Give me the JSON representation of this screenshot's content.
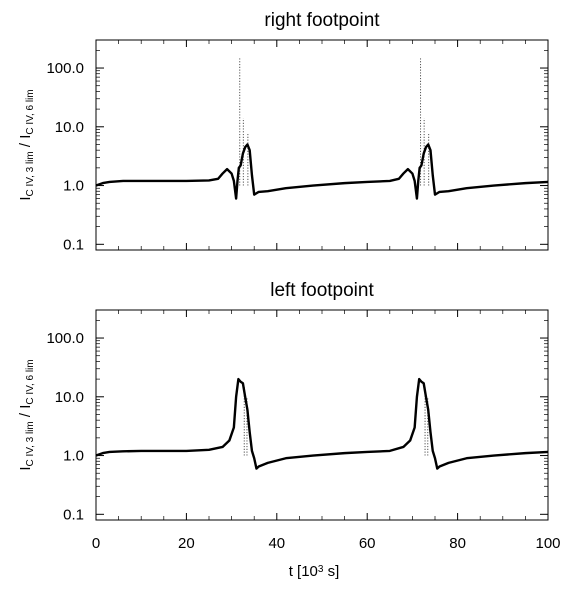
{
  "chart_data": [
    {
      "type": "line",
      "title": "right footpoint",
      "ylabel_main": "I",
      "ylabel_sub_num": "C IV, 3 lim",
      "ylabel_sub_den": "C IV, 6 lim",
      "xlim": [
        0,
        100
      ],
      "ylim": [
        0.08,
        300
      ],
      "yscale": "log",
      "xticks": [
        0,
        20,
        40,
        60,
        80,
        100
      ],
      "yticks": [
        0.1,
        1.0,
        10.0,
        100.0
      ],
      "ytick_labels": [
        "0.1",
        "1.0",
        "10.0",
        "100.0"
      ],
      "series": [
        {
          "x": [
            0,
            1.5,
            3,
            6,
            10,
            15,
            20,
            25,
            27,
            28,
            29,
            30,
            30.5,
            31,
            31.3,
            31.6,
            32,
            32.5,
            33,
            33.5,
            34,
            34.5,
            35,
            36,
            38,
            42,
            48,
            55,
            60,
            65,
            67,
            68,
            69,
            70,
            70.5,
            71,
            71.3,
            71.6,
            72,
            72.5,
            73,
            73.5,
            74,
            74.5,
            75,
            76,
            78,
            82,
            88,
            95,
            100
          ],
          "y": [
            1.0,
            1.1,
            1.15,
            1.2,
            1.2,
            1.2,
            1.2,
            1.22,
            1.3,
            1.6,
            1.9,
            1.6,
            1.2,
            0.6,
            1.2,
            2.0,
            2.2,
            3.5,
            4.5,
            5.0,
            4.0,
            1.5,
            0.7,
            0.78,
            0.8,
            0.9,
            1.0,
            1.1,
            1.15,
            1.2,
            1.3,
            1.6,
            1.9,
            1.6,
            1.2,
            0.6,
            1.2,
            2.0,
            2.2,
            3.5,
            4.5,
            5.0,
            4.0,
            1.5,
            0.7,
            0.78,
            0.8,
            0.9,
            1.0,
            1.1,
            1.15
          ]
        }
      ],
      "spikes": [
        {
          "x": 31.8,
          "ymin": 1.0,
          "ymax": 150
        },
        {
          "x": 32.6,
          "ymin": 1.0,
          "ymax": 14
        },
        {
          "x": 33.6,
          "ymin": 1.0,
          "ymax": 8
        },
        {
          "x": 71.8,
          "ymin": 1.0,
          "ymax": 150
        },
        {
          "x": 72.6,
          "ymin": 1.0,
          "ymax": 14
        },
        {
          "x": 73.6,
          "ymin": 1.0,
          "ymax": 8
        }
      ]
    },
    {
      "type": "line",
      "title": "left footpoint",
      "ylabel_main": "I",
      "ylabel_sub_num": "C IV, 3 lim",
      "ylabel_sub_den": "C IV, 6 lim",
      "xlim": [
        0,
        100
      ],
      "ylim": [
        0.08,
        300
      ],
      "yscale": "log",
      "xticks": [
        0,
        20,
        40,
        60,
        80,
        100
      ],
      "xtick_labels": [
        "0",
        "20",
        "40",
        "60",
        "80",
        "100"
      ],
      "xlabel_main": "t [10",
      "xlabel_sup": "3",
      "xlabel_end": " s]",
      "yticks": [
        0.1,
        1.0,
        10.0,
        100.0
      ],
      "ytick_labels": [
        "0.1",
        "1.0",
        "10.0",
        "100.0"
      ],
      "series": [
        {
          "x": [
            0,
            1.5,
            3,
            6,
            10,
            15,
            20,
            25,
            28,
            29.5,
            30.5,
            31,
            31.5,
            32,
            32.5,
            33,
            33.5,
            34,
            34.5,
            35,
            35.5,
            36,
            38,
            42,
            48,
            55,
            60,
            65,
            68,
            69.5,
            70.5,
            71,
            71.5,
            72,
            72.5,
            73,
            73.5,
            74,
            74.5,
            75,
            75.5,
            76,
            78,
            82,
            88,
            95,
            100
          ],
          "y": [
            1.0,
            1.1,
            1.15,
            1.18,
            1.2,
            1.2,
            1.2,
            1.25,
            1.4,
            1.8,
            3.0,
            10,
            20,
            18,
            17,
            10,
            6,
            2.5,
            1.2,
            0.9,
            0.6,
            0.65,
            0.75,
            0.9,
            1.0,
            1.1,
            1.15,
            1.2,
            1.4,
            1.8,
            3.0,
            10,
            20,
            18,
            17,
            10,
            6,
            2.5,
            1.2,
            0.9,
            0.6,
            0.65,
            0.75,
            0.9,
            1.0,
            1.1,
            1.15
          ]
        }
      ],
      "spikes": [
        {
          "x": 32.8,
          "ymin": 1.0,
          "ymax": 15
        },
        {
          "x": 33.4,
          "ymin": 1.0,
          "ymax": 10
        },
        {
          "x": 72.8,
          "ymin": 1.0,
          "ymax": 15
        },
        {
          "x": 73.4,
          "ymin": 1.0,
          "ymax": 10
        }
      ]
    }
  ]
}
